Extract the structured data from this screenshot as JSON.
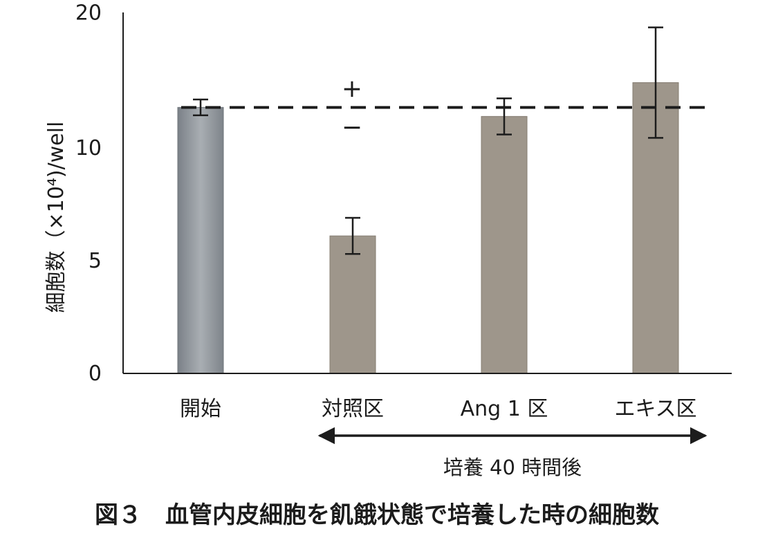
{
  "chart_data": {
    "type": "bar",
    "categories": [
      "開始",
      "対照区",
      "Ang 1 区",
      "エキス区"
    ],
    "values": [
      11.8,
      6.1,
      11.4,
      12.9
    ],
    "errors": [
      0.35,
      0.8,
      0.8,
      2.45
    ],
    "ylabel": "細胞数（×10⁴)/well",
    "ylim": [
      0,
      16
    ],
    "yticks": [
      0,
      5,
      10,
      20
    ],
    "reference_line": 11.8,
    "reference_marks": [
      "+",
      "−"
    ],
    "bar_colors": [
      "#8f959b",
      "#9e968b",
      "#9e968b",
      "#9e968b"
    ],
    "span_label": "培養 40 時間後",
    "caption": "図３　血管内皮細胞を飢餓状態で培養した時の細胞数"
  }
}
